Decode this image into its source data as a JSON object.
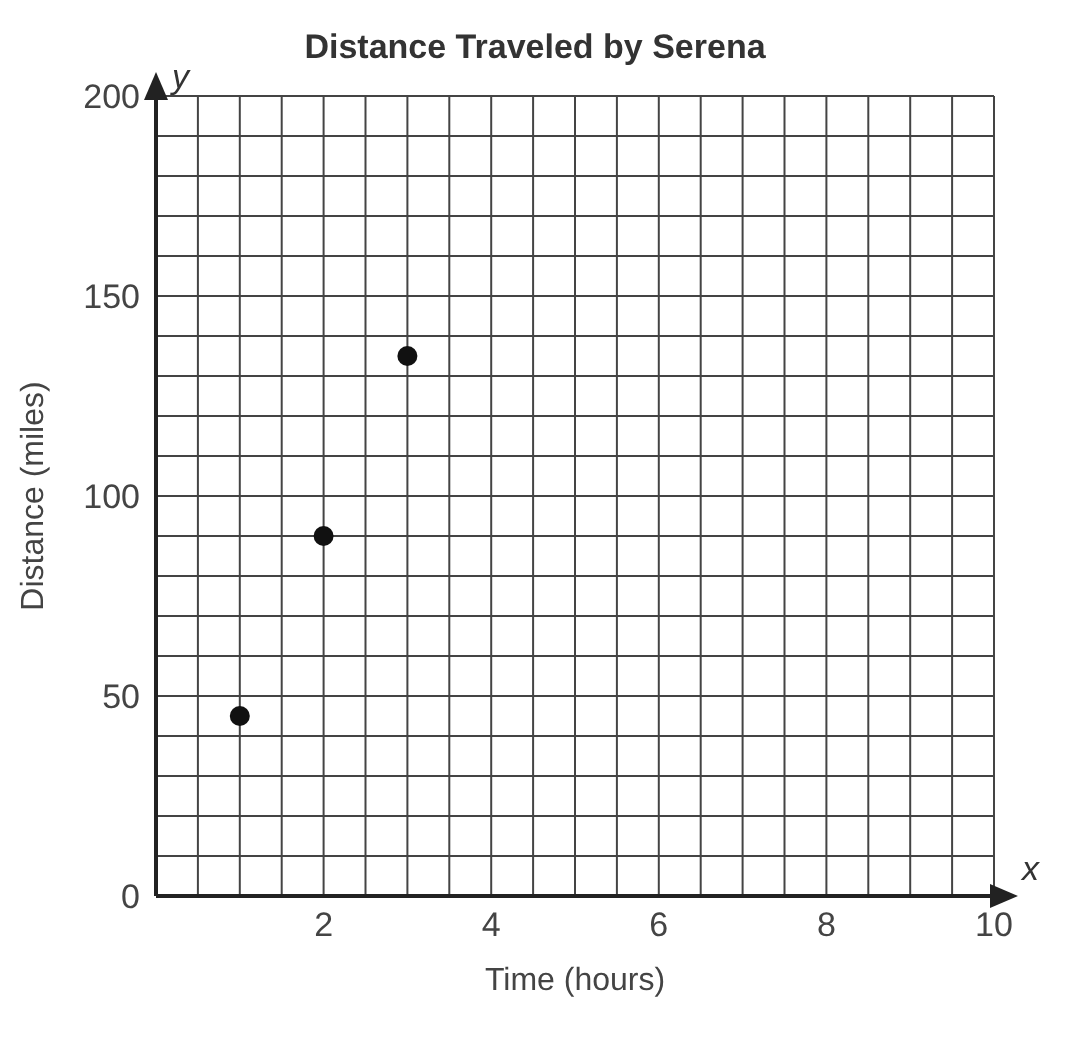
{
  "chart_data": {
    "type": "scatter",
    "title": "Distance Traveled by Serena",
    "xlabel": "Time (hours)",
    "ylabel": "Distance (miles)",
    "annotations": [
      "x",
      "y"
    ],
    "x": [
      1,
      2,
      3
    ],
    "series": [
      {
        "color": "#111111",
        "values": [
          45,
          90,
          135
        ]
      }
    ],
    "marker": "circle",
    "grid": true,
    "xlim": [
      0,
      10
    ],
    "ylim": [
      0,
      200
    ],
    "xticks": [
      {
        "value": 0,
        "label": null
      },
      {
        "value": 0.5,
        "label": null
      },
      {
        "value": 1,
        "label": null
      },
      {
        "value": 1.5,
        "label": null
      },
      2,
      {
        "value": 2.5,
        "label": null
      },
      {
        "value": 3,
        "label": null
      },
      {
        "value": 3.5,
        "label": null
      },
      4,
      {
        "value": 4.5,
        "label": null
      },
      {
        "value": 5,
        "label": null
      },
      {
        "value": 5.5,
        "label": null
      },
      6,
      {
        "value": 6.5,
        "label": null
      },
      {
        "value": 7,
        "label": null
      },
      {
        "value": 7.5,
        "label": null
      },
      8,
      {
        "value": 8.5,
        "label": null
      },
      {
        "value": 9,
        "label": null
      },
      {
        "value": 9.5,
        "label": null
      },
      10
    ],
    "yticks": [
      0,
      {
        "value": 10,
        "label": null
      },
      {
        "value": 20,
        "label": null
      },
      {
        "value": 30,
        "label": null
      },
      {
        "value": 40,
        "label": null
      },
      50,
      {
        "value": 60,
        "label": null
      },
      {
        "value": 70,
        "label": null
      },
      {
        "value": 80,
        "label": null
      },
      {
        "value": 90,
        "label": null
      },
      100,
      {
        "value": 110,
        "label": null
      },
      {
        "value": 120,
        "label": null
      },
      {
        "value": 130,
        "label": null
      },
      {
        "value": 140,
        "label": null
      },
      150,
      {
        "value": 160,
        "label": null
      },
      {
        "value": 170,
        "label": null
      },
      {
        "value": 180,
        "label": null
      },
      {
        "value": 190,
        "label": null
      },
      200
    ]
  }
}
